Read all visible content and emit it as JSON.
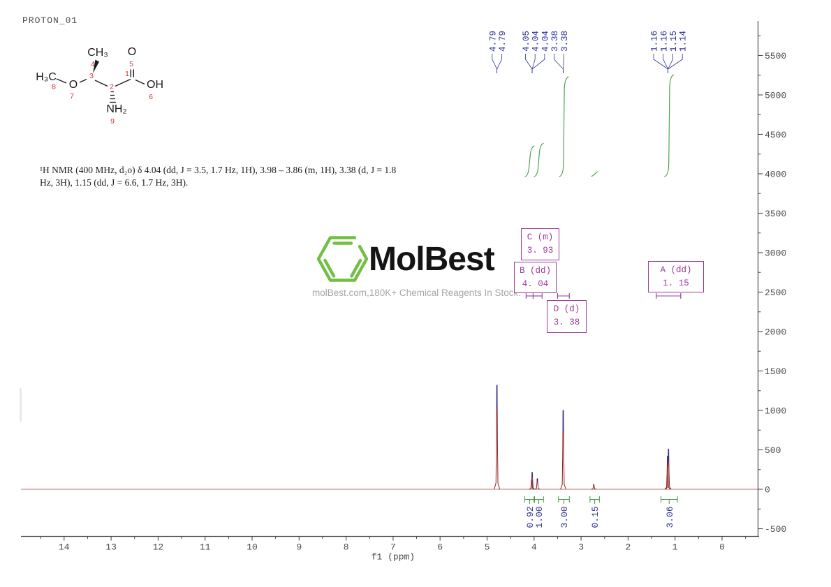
{
  "header": {
    "title": "PROTON_01"
  },
  "structure": {
    "atoms": {
      "methyl_top": "CH₃",
      "carbonyl_o": "O",
      "methoxy": "H₃C",
      "ether_o": "O",
      "hydroxyl": "OH",
      "amine": "NH₂"
    },
    "numbers": {
      "n1": "1",
      "n2": "2",
      "n3": "3",
      "n4": "4",
      "n5": "5",
      "n6": "6",
      "n7": "7",
      "n8": "8",
      "n9": "9"
    }
  },
  "nmr_text": {
    "line1": "¹H NMR (400 MHz, d₂o) δ 4.04 (dd, J = 3.5, 1.7 Hz, 1H), 3.98 – 3.86 (m, 1H), 3.38 (d, J = 1.8",
    "line2": "Hz, 3H), 1.15 (dd, J = 6.6, 1.7 Hz, 3H)."
  },
  "watermark": {
    "brand": "MolBest",
    "tagline": "molBest.com,180K+ Chemical Reagents In Stock."
  },
  "colors": {
    "trace": "#8b2323",
    "peak_tip": "#32329b",
    "integral_green": "#3f9b41",
    "annotation_navy": "#2e3192",
    "multiplet_purple": "#9b3a9b",
    "axis_gray": "#4a4a4a",
    "structure_number_red": "#d03232",
    "logo_green": "#72bf44"
  },
  "chart_data": {
    "type": "line",
    "title": "PROTON_01",
    "xlabel": "f1 (ppm)",
    "x_axis": {
      "ticks": [
        14,
        13,
        12,
        11,
        10,
        9,
        8,
        7,
        6,
        5,
        4,
        3,
        2,
        1,
        0
      ],
      "minor_step": 0.5,
      "range_ppm": [
        14.9,
        -0.8
      ]
    },
    "y_axis": {
      "ticks": [
        5500,
        5000,
        4500,
        4000,
        3500,
        3000,
        2500,
        2000,
        1500,
        1000,
        500,
        0,
        -500
      ],
      "minor_step": 250,
      "range": [
        -650,
        5900
      ]
    },
    "peaks": [
      {
        "ppm": 4.79,
        "intensity": 1320
      },
      {
        "ppm": 4.05,
        "intensity": 120
      },
      {
        "ppm": 4.04,
        "intensity": 215
      },
      {
        "ppm": 3.93,
        "intensity": 135
      },
      {
        "ppm": 3.38,
        "intensity": 1000
      },
      {
        "ppm": 2.73,
        "intensity": 62
      },
      {
        "ppm": 1.16,
        "intensity": 420
      },
      {
        "ppm": 1.14,
        "intensity": 510
      }
    ],
    "peak_label_groups": [
      {
        "labels": [
          {
            "text": "4.79",
            "ppm": 4.79
          },
          {
            "text": "4.79",
            "ppm": 4.79
          }
        ]
      },
      {
        "labels": [
          {
            "text": "4.05",
            "ppm": 4.04
          },
          {
            "text": "4.04",
            "ppm": 4.04
          },
          {
            "text": "4.04",
            "ppm": 4.04
          },
          {
            "text": "3.38",
            "ppm": 3.38
          },
          {
            "text": "3.38",
            "ppm": 3.38
          }
        ]
      },
      {
        "labels": [
          {
            "text": "1.16",
            "ppm": 1.15
          },
          {
            "text": "1.16",
            "ppm": 1.15
          },
          {
            "text": "1.15",
            "ppm": 1.15
          },
          {
            "text": "1.14",
            "ppm": 1.15
          }
        ]
      }
    ],
    "integrals": [
      {
        "value": "0.92",
        "ppm_from": 4.2,
        "ppm_to": 3.99
      },
      {
        "value": "1.00",
        "ppm_from": 4.0,
        "ppm_to": 3.8
      },
      {
        "value": "3.00",
        "ppm_from": 3.48,
        "ppm_to": 3.25
      },
      {
        "value": "0.15",
        "ppm_from": 2.81,
        "ppm_to": 2.61
      },
      {
        "value": "3.06",
        "ppm_from": 1.3,
        "ppm_to": 0.95
      }
    ],
    "multiplet_ranges": [
      {
        "ppm_from": 4.17,
        "ppm_to": 4.02
      },
      {
        "ppm_from": 4.02,
        "ppm_to": 3.83
      },
      {
        "ppm_from": 3.5,
        "ppm_to": 3.25
      },
      {
        "ppm_from": 1.4,
        "ppm_to": 0.88
      }
    ],
    "multiplets": [
      {
        "line1": "C (m)",
        "line2": "3. 93"
      },
      {
        "line1": "B (dd)",
        "line2": "4. 04"
      },
      {
        "line1": "D (d)",
        "line2": "3. 38"
      },
      {
        "line1": "A (dd)",
        "line2": "1. 15"
      }
    ]
  }
}
